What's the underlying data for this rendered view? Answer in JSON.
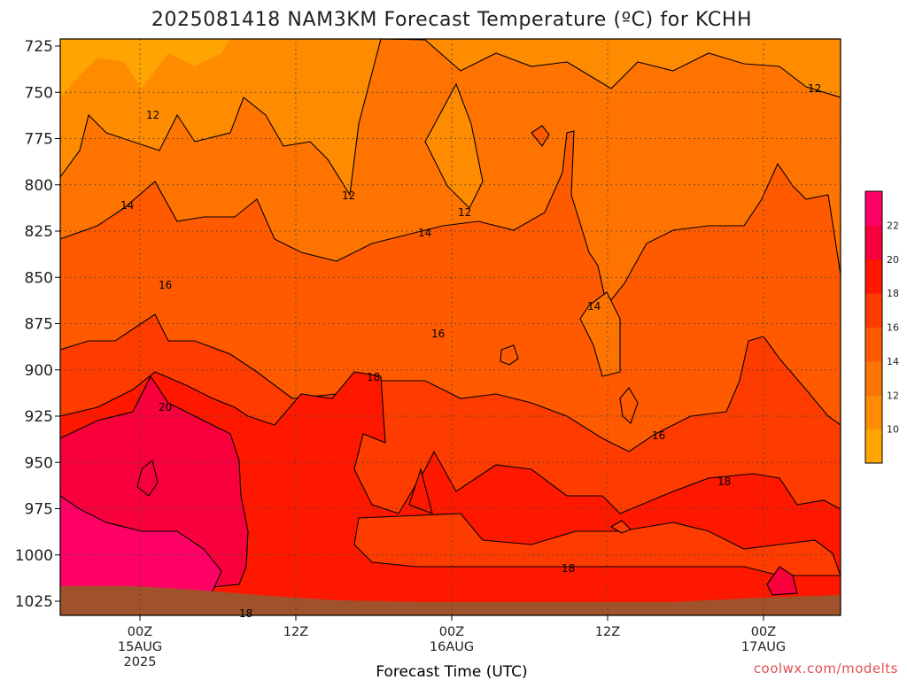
{
  "chart_data": {
    "type": "heatmap",
    "title": "2025081418 NAM3KM Forecast Temperature (ºC) for KCHH",
    "xlabel": "Forecast Time (UTC)",
    "ylabel": "",
    "y_axis": {
      "scale": "pressure (hPa), inverted",
      "ticks": [
        "725",
        "750",
        "775",
        "800",
        "825",
        "850",
        "875",
        "900",
        "925",
        "950",
        "975",
        "1000",
        "1025"
      ]
    },
    "x_axis": {
      "ticks": [
        {
          "line1": "00Z",
          "line2": "15AUG",
          "line3": "2025"
        },
        {
          "line1": "12Z",
          "line2": "",
          "line3": ""
        },
        {
          "line1": "00Z",
          "line2": "16AUG",
          "line3": ""
        },
        {
          "line1": "12Z",
          "line2": "",
          "line3": ""
        },
        {
          "line1": "00Z",
          "line2": "17AUG",
          "line3": ""
        }
      ]
    },
    "colorbar": {
      "ticks": [
        "10",
        "12",
        "14",
        "16",
        "18",
        "20",
        "22"
      ],
      "colors": [
        "#ffa400",
        "#ff8c00",
        "#ff7400",
        "#ff5a00",
        "#ff3c00",
        "#ff1800",
        "#f8003c",
        "#ff0064"
      ]
    },
    "contour_labels": [
      "12",
      "12",
      "12",
      "12",
      "14",
      "14",
      "14",
      "16",
      "16",
      "16",
      "18",
      "18",
      "18",
      "18",
      "20"
    ],
    "ground_color": "#a0522d",
    "grid": true,
    "legend": "right"
  },
  "watermark": "coolwx.com/modelts"
}
